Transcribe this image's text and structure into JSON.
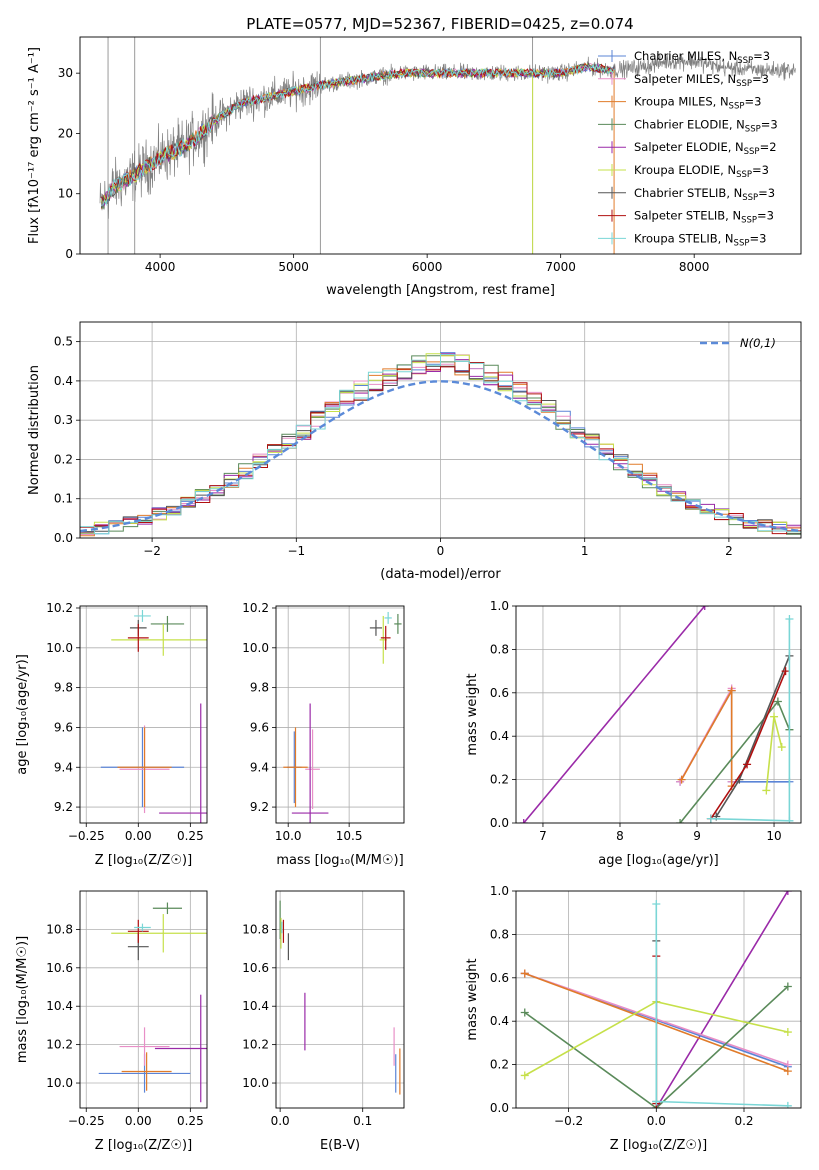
{
  "title": "PLATE=0577, MJD=52367, FIBERID=0425, z=0.074",
  "colors": {
    "data": "#808080",
    "chabrier_miles": "#5b84d6",
    "salpeter_miles": "#e88fc7",
    "kroupa_miles": "#e07b2a",
    "chabrier_elodie": "#5a8a5a",
    "salpeter_elodie": "#9a2aa8",
    "kroupa_elodie": "#c6e04a",
    "chabrier_stelib": "#555555",
    "salpeter_stelib": "#b01010",
    "kroupa_stelib": "#7ad6d6",
    "normal": "#5b8ad8",
    "grid": "#b0b0b0"
  },
  "legend_models": [
    {
      "key": "chabrier_miles",
      "pre": "Chabrier MILES, N",
      "sub": "SSP",
      "post": "=3"
    },
    {
      "key": "salpeter_miles",
      "pre": "Salpeter MILES, N",
      "sub": "SSP",
      "post": "=3"
    },
    {
      "key": "kroupa_miles",
      "pre": "Kroupa MILES, N",
      "sub": "SSP",
      "post": "=3"
    },
    {
      "key": "chabrier_elodie",
      "pre": "Chabrier ELODIE, N",
      "sub": "SSP",
      "post": "=3"
    },
    {
      "key": "salpeter_elodie",
      "pre": "Salpeter ELODIE, N",
      "sub": "SSP",
      "post": "=2"
    },
    {
      "key": "kroupa_elodie",
      "pre": "Kroupa ELODIE, N",
      "sub": "SSP",
      "post": "=3"
    },
    {
      "key": "chabrier_stelib",
      "pre": "Chabrier STELIB, N",
      "sub": "SSP",
      "post": "=3"
    },
    {
      "key": "salpeter_stelib",
      "pre": "Salpeter STELIB, N",
      "sub": "SSP",
      "post": "=3"
    },
    {
      "key": "kroupa_stelib",
      "pre": "Kroupa STELIB, N",
      "sub": "SSP",
      "post": "=3"
    }
  ],
  "chart_data": [
    {
      "id": "spectrum",
      "type": "line",
      "xlabel": "wavelength [Angstrom, rest frame]",
      "ylabel": "Flux [f_λ 10^-17 erg cm^-2 s^-1 A^-1]",
      "xlim": [
        3400,
        8800
      ],
      "ylim": [
        0,
        36
      ],
      "xticks": [
        4000,
        5000,
        6000,
        7000,
        8000
      ],
      "yticks": [
        0,
        10,
        20,
        30
      ],
      "continuum": [
        [
          3550,
          8
        ],
        [
          3650,
          11
        ],
        [
          3800,
          13
        ],
        [
          4000,
          16
        ],
        [
          4200,
          18
        ],
        [
          4400,
          22
        ],
        [
          4600,
          25
        ],
        [
          4800,
          26
        ],
        [
          5000,
          27
        ],
        [
          5200,
          28
        ],
        [
          5500,
          29
        ],
        [
          5800,
          30
        ],
        [
          6000,
          30
        ],
        [
          6300,
          30
        ],
        [
          6600,
          30
        ],
        [
          7000,
          30
        ],
        [
          7200,
          31
        ],
        [
          7400,
          30.5
        ],
        [
          7600,
          31
        ],
        [
          7800,
          32
        ],
        [
          8000,
          32
        ],
        [
          8200,
          31
        ],
        [
          8500,
          30.5
        ],
        [
          8800,
          30.5
        ]
      ],
      "spikes": [
        [
          3610,
          0
        ],
        [
          3810,
          0
        ],
        [
          5200,
          0
        ],
        [
          6790,
          0
        ]
      ],
      "legend": "upper-right",
      "grid": false
    },
    {
      "id": "residuals",
      "type": "histogram",
      "xlabel": "(data-model)/error",
      "ylabel": "Normed distribution",
      "xlim": [
        -2.5,
        2.5
      ],
      "ylim": [
        0,
        0.55
      ],
      "xticks": [
        -2,
        -1,
        0,
        1,
        2
      ],
      "yticks": [
        0.0,
        0.1,
        0.2,
        0.3,
        0.4,
        0.5
      ],
      "normal_label": "N(0,1)",
      "legend": "upper-right",
      "grid": true
    },
    {
      "id": "age_vs_Z",
      "type": "scatter",
      "xlabel": "Z [log10(Z/Z☉)]",
      "ylabel": "age [log10(age/yr)]",
      "xlim": [
        -0.28,
        0.33
      ],
      "ylim": [
        9.12,
        10.21
      ],
      "xticks": [
        -0.25,
        0.0,
        0.25
      ],
      "yticks": [
        9.2,
        9.4,
        9.6,
        9.8,
        10.0,
        10.2
      ],
      "grid": true,
      "points": [
        {
          "c": "chabrier_miles",
          "x": 0.02,
          "y": 9.4,
          "xe": 0.2,
          "ye": 0.2
        },
        {
          "c": "salpeter_miles",
          "x": 0.03,
          "y": 9.39,
          "xe": 0.12,
          "ye": 0.22
        },
        {
          "c": "kroupa_miles",
          "x": 0.03,
          "y": 9.4,
          "xe": 0.13,
          "ye": 0.2
        },
        {
          "c": "chabrier_elodie",
          "x": 0.14,
          "y": 10.12,
          "xe": 0.08,
          "ye": 0.04
        },
        {
          "c": "salpeter_elodie",
          "x": 0.3,
          "y": 9.17,
          "xe": 0.2,
          "ye": 0.55
        },
        {
          "c": "kroupa_elodie",
          "x": 0.12,
          "y": 10.04,
          "xe": 0.25,
          "ye": 0.08
        },
        {
          "c": "chabrier_stelib",
          "x": 0.0,
          "y": 10.1,
          "xe": 0.04,
          "ye": 0.04
        },
        {
          "c": "salpeter_stelib",
          "x": 0.0,
          "y": 10.05,
          "xe": 0.05,
          "ye": 0.07
        },
        {
          "c": "kroupa_stelib",
          "x": 0.02,
          "y": 10.16,
          "xe": 0.04,
          "ye": 0.03
        }
      ]
    },
    {
      "id": "age_vs_mass",
      "type": "scatter",
      "xlabel": "mass [log10(M/M☉)]",
      "ylabel": "",
      "xlim": [
        9.9,
        10.95
      ],
      "ylim": [
        9.12,
        10.21
      ],
      "xticks": [
        10.0,
        10.5
      ],
      "yticks": [
        9.2,
        9.4,
        9.6,
        9.8,
        10.0,
        10.2
      ],
      "grid": true,
      "points": [
        {
          "c": "chabrier_miles",
          "x": 10.05,
          "y": 9.4,
          "xe": 0.06,
          "ye": 0.18
        },
        {
          "c": "salpeter_miles",
          "x": 10.2,
          "y": 9.39,
          "xe": 0.06,
          "ye": 0.2
        },
        {
          "c": "kroupa_miles",
          "x": 10.06,
          "y": 9.4,
          "xe": 0.1,
          "ye": 0.2
        },
        {
          "c": "chabrier_elodie",
          "x": 10.9,
          "y": 10.12,
          "xe": 0.03,
          "ye": 0.05
        },
        {
          "c": "salpeter_elodie",
          "x": 10.18,
          "y": 9.17,
          "xe": 0.15,
          "ye": 0.55
        },
        {
          "c": "kroupa_elodie",
          "x": 10.78,
          "y": 10.04,
          "xe": 0.03,
          "ye": 0.12
        },
        {
          "c": "chabrier_stelib",
          "x": 10.72,
          "y": 10.1,
          "xe": 0.05,
          "ye": 0.04
        },
        {
          "c": "salpeter_stelib",
          "x": 10.8,
          "y": 10.05,
          "xe": 0.04,
          "ye": 0.06
        },
        {
          "c": "kroupa_stelib",
          "x": 10.82,
          "y": 10.15,
          "xe": 0.03,
          "ye": 0.03
        }
      ]
    },
    {
      "id": "weight_vs_age",
      "type": "line",
      "xlabel": "age [log10(age/yr)]",
      "ylabel": "mass weight",
      "xlim": [
        6.65,
        10.35
      ],
      "ylim": [
        0,
        1
      ],
      "xticks": [
        7,
        8,
        9,
        10
      ],
      "yticks": [
        0.0,
        0.2,
        0.4,
        0.6,
        0.8,
        1.0
      ],
      "grid": true,
      "series": [
        {
          "c": "salpeter_elodie",
          "x": [
            6.75,
            9.1
          ],
          "y": [
            0.0,
            1.0
          ]
        },
        {
          "c": "chabrier_miles",
          "x": [
            8.78,
            9.45,
            9.45,
            10.2
          ],
          "y": [
            0.19,
            0.61,
            0.19,
            0.19
          ]
        },
        {
          "c": "salpeter_miles",
          "x": [
            8.78,
            9.45,
            9.45
          ],
          "y": [
            0.19,
            0.62,
            0.19
          ]
        },
        {
          "c": "kroupa_miles",
          "x": [
            8.8,
            9.45,
            9.45
          ],
          "y": [
            0.2,
            0.61,
            0.17
          ]
        },
        {
          "c": "chabrier_elodie",
          "x": [
            8.78,
            10.05,
            10.2
          ],
          "y": [
            0.0,
            0.56,
            0.43
          ]
        },
        {
          "c": "kroupa_elodie",
          "x": [
            9.9,
            10.0,
            10.1
          ],
          "y": [
            0.15,
            0.49,
            0.35
          ]
        },
        {
          "c": "chabrier_stelib",
          "x": [
            9.25,
            9.55,
            10.2
          ],
          "y": [
            0.03,
            0.2,
            0.77
          ]
        },
        {
          "c": "salpeter_stelib",
          "x": [
            9.18,
            9.65,
            10.15
          ],
          "y": [
            0.02,
            0.27,
            0.7
          ]
        },
        {
          "c": "kroupa_stelib",
          "x": [
            9.18,
            10.2,
            10.2
          ],
          "y": [
            0.02,
            0.01,
            0.94
          ]
        }
      ]
    },
    {
      "id": "mass_vs_Z",
      "type": "scatter",
      "xlabel": "Z [log10(Z/Z☉)]",
      "ylabel": "mass [log10(M/M☉)]",
      "xlim": [
        -0.28,
        0.33
      ],
      "ylim": [
        9.87,
        11.0
      ],
      "xticks": [
        -0.25,
        0.0,
        0.25
      ],
      "yticks": [
        10.0,
        10.2,
        10.4,
        10.6,
        10.8
      ],
      "grid": true,
      "points": [
        {
          "c": "chabrier_miles",
          "x": 0.03,
          "y": 10.05,
          "xe": 0.22,
          "ye": 0.1
        },
        {
          "c": "salpeter_miles",
          "x": 0.03,
          "y": 10.19,
          "xe": 0.12,
          "ye": 0.1
        },
        {
          "c": "kroupa_miles",
          "x": 0.04,
          "y": 10.06,
          "xe": 0.12,
          "ye": 0.1
        },
        {
          "c": "chabrier_elodie",
          "x": 0.14,
          "y": 10.91,
          "xe": 0.07,
          "ye": 0.03
        },
        {
          "c": "salpeter_elodie",
          "x": 0.3,
          "y": 10.18,
          "xe": 0.22,
          "ye": 0.28
        },
        {
          "c": "kroupa_elodie",
          "x": 0.12,
          "y": 10.78,
          "xe": 0.25,
          "ye": 0.1
        },
        {
          "c": "chabrier_stelib",
          "x": 0.0,
          "y": 10.71,
          "xe": 0.05,
          "ye": 0.07
        },
        {
          "c": "salpeter_stelib",
          "x": 0.0,
          "y": 10.79,
          "xe": 0.05,
          "ye": 0.06
        },
        {
          "c": "kroupa_stelib",
          "x": 0.02,
          "y": 10.81,
          "xe": 0.04,
          "ye": 0.02
        }
      ]
    },
    {
      "id": "mass_vs_ebv",
      "type": "scatter",
      "xlabel": "E(B-V)",
      "ylabel": "",
      "xlim": [
        -0.005,
        0.15
      ],
      "ylim": [
        9.87,
        11.0
      ],
      "xticks": [
        0.0,
        0.1
      ],
      "yticks": [
        10.0,
        10.2,
        10.4,
        10.6,
        10.8
      ],
      "grid": true,
      "points": [
        {
          "c": "chabrier_miles",
          "x": 0.14,
          "y": 10.05,
          "xe": 0,
          "ye": 0.1
        },
        {
          "c": "salpeter_miles",
          "x": 0.138,
          "y": 10.19,
          "xe": 0,
          "ye": 0.1
        },
        {
          "c": "kroupa_miles",
          "x": 0.145,
          "y": 10.06,
          "xe": 0,
          "ye": 0.12
        },
        {
          "c": "chabrier_elodie",
          "x": 0.0,
          "y": 10.85,
          "xe": 0,
          "ye": 0.1
        },
        {
          "c": "salpeter_elodie",
          "x": 0.03,
          "y": 10.32,
          "xe": 0,
          "ye": 0.15
        },
        {
          "c": "kroupa_elodie",
          "x": 0.001,
          "y": 10.78,
          "xe": 0,
          "ye": 0.08
        },
        {
          "c": "chabrier_stelib",
          "x": 0.01,
          "y": 10.71,
          "xe": 0,
          "ye": 0.07
        },
        {
          "c": "salpeter_stelib",
          "x": 0.004,
          "y": 10.79,
          "xe": 0,
          "ye": 0.06
        },
        {
          "c": "kroupa_stelib",
          "x": 0.002,
          "y": 10.81,
          "xe": 0,
          "ye": 0.03
        }
      ]
    },
    {
      "id": "weight_vs_Z",
      "type": "line",
      "xlabel": "Z [log10(Z/Z☉)]",
      "ylabel": "mass weight",
      "xlim": [
        -0.32,
        0.33
      ],
      "ylim": [
        0,
        1
      ],
      "xticks": [
        -0.2,
        0.0,
        0.2
      ],
      "yticks": [
        0.0,
        0.2,
        0.4,
        0.6,
        0.8,
        1.0
      ],
      "grid": true,
      "series": [
        {
          "c": "salpeter_elodie",
          "x": [
            0.0,
            0.3
          ],
          "y": [
            0.0,
            1.0
          ]
        },
        {
          "c": "chabrier_miles",
          "x": [
            -0.3,
            0.3
          ],
          "y": [
            0.62,
            0.19
          ]
        },
        {
          "c": "salpeter_miles",
          "x": [
            -0.3,
            0.3
          ],
          "y": [
            0.62,
            0.2
          ]
        },
        {
          "c": "kroupa_miles",
          "x": [
            -0.3,
            0.3
          ],
          "y": [
            0.62,
            0.17
          ]
        },
        {
          "c": "chabrier_elodie",
          "x": [
            -0.3,
            0.0,
            0.3
          ],
          "y": [
            0.44,
            0.0,
            0.56
          ]
        },
        {
          "c": "kroupa_elodie",
          "x": [
            -0.3,
            0.0,
            0.3
          ],
          "y": [
            0.15,
            0.49,
            0.35
          ]
        },
        {
          "c": "chabrier_stelib",
          "x": [
            0.0,
            0.0
          ],
          "y": [
            0.03,
            0.77
          ]
        },
        {
          "c": "salpeter_stelib",
          "x": [
            0.0,
            0.0
          ],
          "y": [
            0.02,
            0.7
          ]
        },
        {
          "c": "kroupa_stelib",
          "x": [
            0.0,
            0.0,
            0.3
          ],
          "y": [
            0.94,
            0.03,
            0.01
          ]
        }
      ]
    }
  ]
}
